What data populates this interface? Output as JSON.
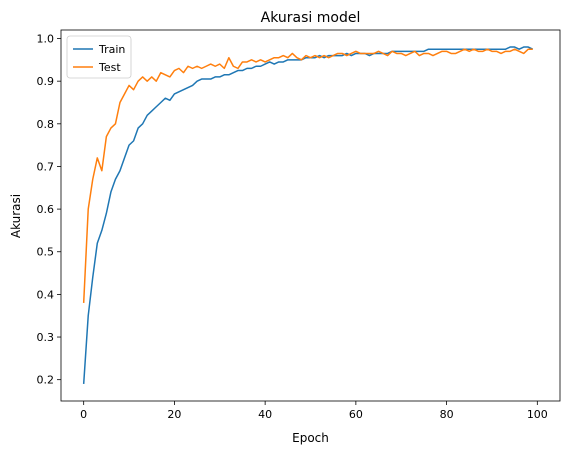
{
  "chart_data": {
    "type": "line",
    "title": "Akurasi model",
    "xlabel": "Epoch",
    "ylabel": "Akurasi",
    "xlim": [
      -5,
      105
    ],
    "ylim": [
      0.15,
      1.02
    ],
    "xticks": [
      0,
      20,
      40,
      60,
      80,
      100
    ],
    "yticks": [
      0.2,
      0.3,
      0.4,
      0.5,
      0.6,
      0.7,
      0.8,
      0.9,
      1.0
    ],
    "xtick_labels": [
      "0",
      "20",
      "40",
      "60",
      "80",
      "100"
    ],
    "ytick_labels": [
      "0.2",
      "0.3",
      "0.4",
      "0.5",
      "0.6",
      "0.7",
      "0.8",
      "0.9",
      "1.0"
    ],
    "grid": false,
    "legend_position": "top-left",
    "series": [
      {
        "name": "Train",
        "color": "#1f77b4",
        "x": [
          0,
          1,
          2,
          3,
          4,
          5,
          6,
          7,
          8,
          9,
          10,
          11,
          12,
          13,
          14,
          15,
          16,
          17,
          18,
          19,
          20,
          21,
          22,
          23,
          24,
          25,
          26,
          27,
          28,
          29,
          30,
          31,
          32,
          33,
          34,
          35,
          36,
          37,
          38,
          39,
          40,
          41,
          42,
          43,
          44,
          45,
          46,
          47,
          48,
          49,
          50,
          51,
          52,
          53,
          54,
          55,
          56,
          57,
          58,
          59,
          60,
          61,
          62,
          63,
          64,
          65,
          66,
          67,
          68,
          69,
          70,
          71,
          72,
          73,
          74,
          75,
          76,
          77,
          78,
          79,
          80,
          81,
          82,
          83,
          84,
          85,
          86,
          87,
          88,
          89,
          90,
          91,
          92,
          93,
          94,
          95,
          96,
          97,
          98,
          99
        ],
        "values": [
          0.19,
          0.35,
          0.44,
          0.52,
          0.55,
          0.59,
          0.64,
          0.67,
          0.69,
          0.72,
          0.75,
          0.76,
          0.79,
          0.8,
          0.82,
          0.83,
          0.84,
          0.85,
          0.86,
          0.855,
          0.87,
          0.875,
          0.88,
          0.885,
          0.89,
          0.9,
          0.905,
          0.905,
          0.905,
          0.91,
          0.91,
          0.915,
          0.915,
          0.92,
          0.925,
          0.925,
          0.93,
          0.93,
          0.935,
          0.935,
          0.94,
          0.945,
          0.94,
          0.945,
          0.945,
          0.95,
          0.95,
          0.95,
          0.95,
          0.955,
          0.955,
          0.955,
          0.96,
          0.955,
          0.96,
          0.96,
          0.96,
          0.96,
          0.965,
          0.96,
          0.965,
          0.965,
          0.965,
          0.96,
          0.965,
          0.965,
          0.965,
          0.965,
          0.97,
          0.97,
          0.97,
          0.97,
          0.97,
          0.97,
          0.97,
          0.97,
          0.975,
          0.975,
          0.975,
          0.975,
          0.975,
          0.975,
          0.975,
          0.975,
          0.975,
          0.975,
          0.975,
          0.975,
          0.975,
          0.975,
          0.975,
          0.975,
          0.975,
          0.975,
          0.98,
          0.98,
          0.975,
          0.98,
          0.98,
          0.975
        ]
      },
      {
        "name": "Test",
        "color": "#ff7f0e",
        "x": [
          0,
          1,
          2,
          3,
          4,
          5,
          6,
          7,
          8,
          9,
          10,
          11,
          12,
          13,
          14,
          15,
          16,
          17,
          18,
          19,
          20,
          21,
          22,
          23,
          24,
          25,
          26,
          27,
          28,
          29,
          30,
          31,
          32,
          33,
          34,
          35,
          36,
          37,
          38,
          39,
          40,
          41,
          42,
          43,
          44,
          45,
          46,
          47,
          48,
          49,
          50,
          51,
          52,
          53,
          54,
          55,
          56,
          57,
          58,
          59,
          60,
          61,
          62,
          63,
          64,
          65,
          66,
          67,
          68,
          69,
          70,
          71,
          72,
          73,
          74,
          75,
          76,
          77,
          78,
          79,
          80,
          81,
          82,
          83,
          84,
          85,
          86,
          87,
          88,
          89,
          90,
          91,
          92,
          93,
          94,
          95,
          96,
          97,
          98,
          99
        ],
        "values": [
          0.38,
          0.6,
          0.67,
          0.72,
          0.69,
          0.77,
          0.79,
          0.8,
          0.85,
          0.87,
          0.89,
          0.88,
          0.9,
          0.91,
          0.9,
          0.91,
          0.9,
          0.92,
          0.915,
          0.91,
          0.925,
          0.93,
          0.92,
          0.935,
          0.93,
          0.935,
          0.93,
          0.935,
          0.94,
          0.935,
          0.94,
          0.93,
          0.955,
          0.935,
          0.93,
          0.945,
          0.945,
          0.95,
          0.945,
          0.95,
          0.945,
          0.95,
          0.955,
          0.955,
          0.96,
          0.955,
          0.965,
          0.955,
          0.95,
          0.96,
          0.955,
          0.96,
          0.955,
          0.96,
          0.955,
          0.96,
          0.965,
          0.965,
          0.96,
          0.965,
          0.97,
          0.965,
          0.965,
          0.965,
          0.965,
          0.97,
          0.965,
          0.96,
          0.97,
          0.965,
          0.965,
          0.96,
          0.965,
          0.97,
          0.96,
          0.965,
          0.965,
          0.96,
          0.965,
          0.97,
          0.97,
          0.965,
          0.965,
          0.97,
          0.975,
          0.97,
          0.975,
          0.97,
          0.97,
          0.975,
          0.97,
          0.97,
          0.965,
          0.97,
          0.97,
          0.975,
          0.97,
          0.965,
          0.975,
          0.975
        ]
      }
    ]
  }
}
